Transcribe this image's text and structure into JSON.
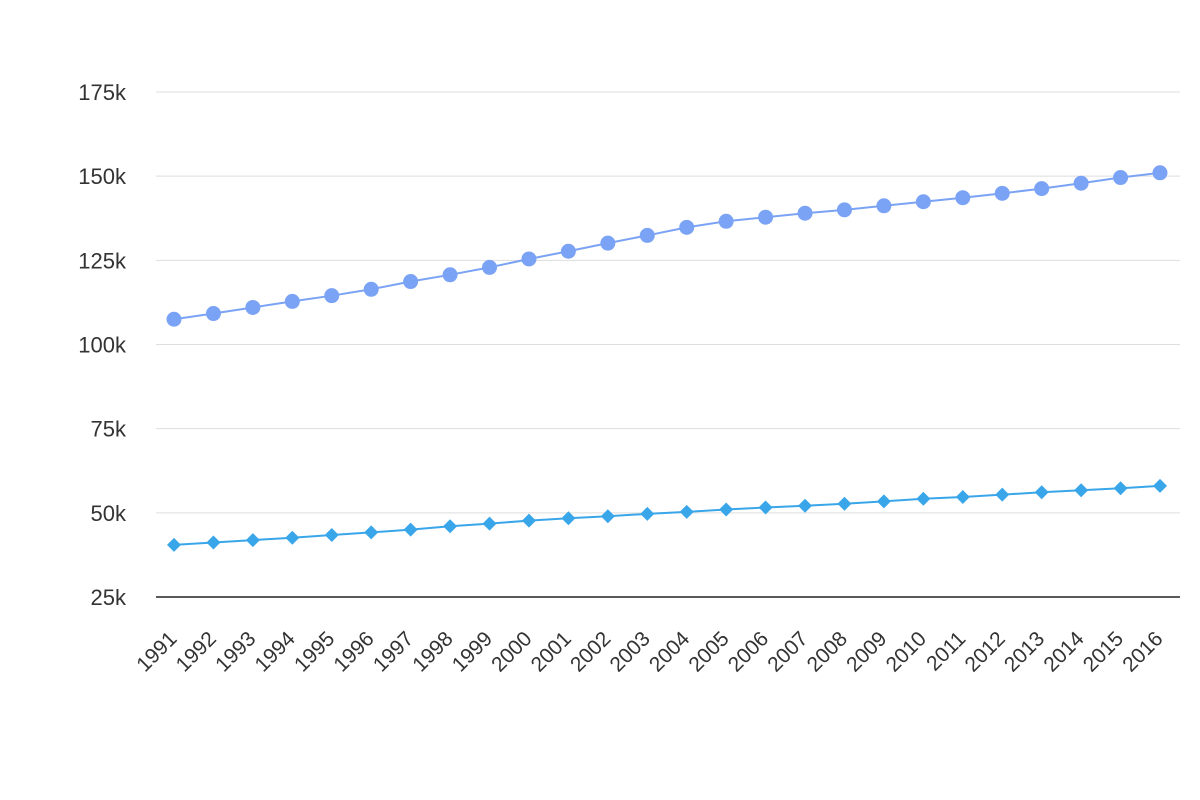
{
  "chart_data": {
    "type": "line",
    "title": "",
    "xlabel": "",
    "ylabel": "",
    "x": [
      "1991",
      "1992",
      "1993",
      "1994",
      "1995",
      "1996",
      "1997",
      "1998",
      "1999",
      "2000",
      "2001",
      "2002",
      "2003",
      "2004",
      "2005",
      "2006",
      "2007",
      "2008",
      "2009",
      "2010",
      "2011",
      "2012",
      "2013",
      "2014",
      "2015",
      "2016"
    ],
    "y_ticks": [
      {
        "value": 25000,
        "label": "25k"
      },
      {
        "value": 50000,
        "label": "50k"
      },
      {
        "value": 75000,
        "label": "75k"
      },
      {
        "value": 100000,
        "label": "100k"
      },
      {
        "value": 125000,
        "label": "125k"
      },
      {
        "value": 150000,
        "label": "150k"
      },
      {
        "value": 175000,
        "label": "175k"
      }
    ],
    "ylim": [
      25000,
      175000
    ],
    "grid": true,
    "legend": "none",
    "series": [
      {
        "marker": "circle",
        "color": "#7ba3f5",
        "values": [
          107500,
          109200,
          111000,
          112800,
          114500,
          116400,
          118700,
          120700,
          122900,
          125400,
          127700,
          130100,
          132400,
          134800,
          136600,
          137800,
          139000,
          140000,
          141200,
          142400,
          143600,
          144900,
          146300,
          147900,
          149600,
          151000
        ]
      },
      {
        "marker": "diamond",
        "color": "#3aa6ea",
        "values": [
          40500,
          41200,
          41900,
          42600,
          43400,
          44200,
          45000,
          46000,
          46800,
          47700,
          48400,
          49000,
          49700,
          50300,
          51000,
          51600,
          52100,
          52700,
          53400,
          54200,
          54700,
          55400,
          56100,
          56700,
          57300,
          58000
        ]
      }
    ]
  }
}
